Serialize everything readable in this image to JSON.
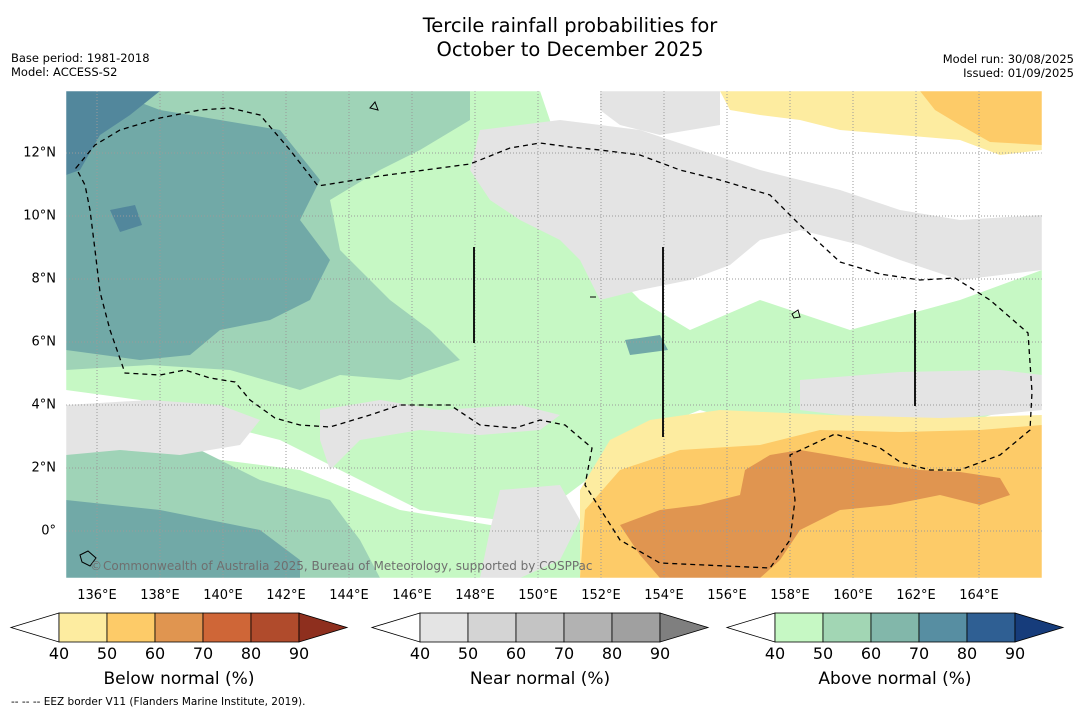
{
  "title_line1": "Tercile rainfall probabilities for",
  "title_line2": "October to December 2025",
  "base_period": "Base period: 1981-2018",
  "model": "Model: ACCESS-S2",
  "model_run": "Model run: 30/08/2025",
  "issued": "Issued: 01/09/2025",
  "copyright": "Commonwealth of Australia 2025, Bureau of Meteorology, supported by COSPPac",
  "footer": "--  --  -- EEZ border V11 (Flanders Marine Institute, 2019).",
  "map": {
    "lon_range": [
      135,
      166
    ],
    "lat_range": [
      -1.5,
      13.9
    ],
    "lat_ticks": [
      "12°N",
      "10°N",
      "8°N",
      "6°N",
      "4°N",
      "2°N",
      "0°"
    ],
    "lon_ticks": [
      "136°E",
      "138°E",
      "140°E",
      "142°E",
      "144°E",
      "146°E",
      "148°E",
      "150°E",
      "152°E",
      "154°E",
      "156°E",
      "158°E",
      "160°E",
      "162°E",
      "164°E"
    ],
    "colors": {
      "below_50": "#fdeca0",
      "below_60": "#fdcb68",
      "below_70": "#e09550",
      "near_50": "#e4e4e4",
      "above_50": "#c6f8c4",
      "above_60": "#9fd3b7",
      "above_70": "#71a9a7",
      "above_80": "#52879c"
    }
  },
  "colorbars": [
    {
      "title": "Below normal (%)",
      "ticks": [
        "40",
        "50",
        "60",
        "70",
        "80",
        "90"
      ],
      "colors": [
        "#ffffff",
        "#fdeca0",
        "#fdcb68",
        "#e09550",
        "#cf6637",
        "#b04b2c",
        "#8e2f1e"
      ]
    },
    {
      "title": "Near normal (%)",
      "ticks": [
        "40",
        "50",
        "60",
        "70",
        "80",
        "90"
      ],
      "colors": [
        "#ffffff",
        "#e4e4e4",
        "#d4d4d4",
        "#c4c4c4",
        "#b2b2b2",
        "#a0a0a0",
        "#7f7f7f"
      ]
    },
    {
      "title": "Above normal (%)",
      "ticks": [
        "40",
        "50",
        "60",
        "70",
        "80",
        "90"
      ],
      "colors": [
        "#ffffff",
        "#c6f8c4",
        "#a2d6b4",
        "#82b7aa",
        "#578ea2",
        "#2f5f93",
        "#163c7b"
      ]
    }
  ]
}
